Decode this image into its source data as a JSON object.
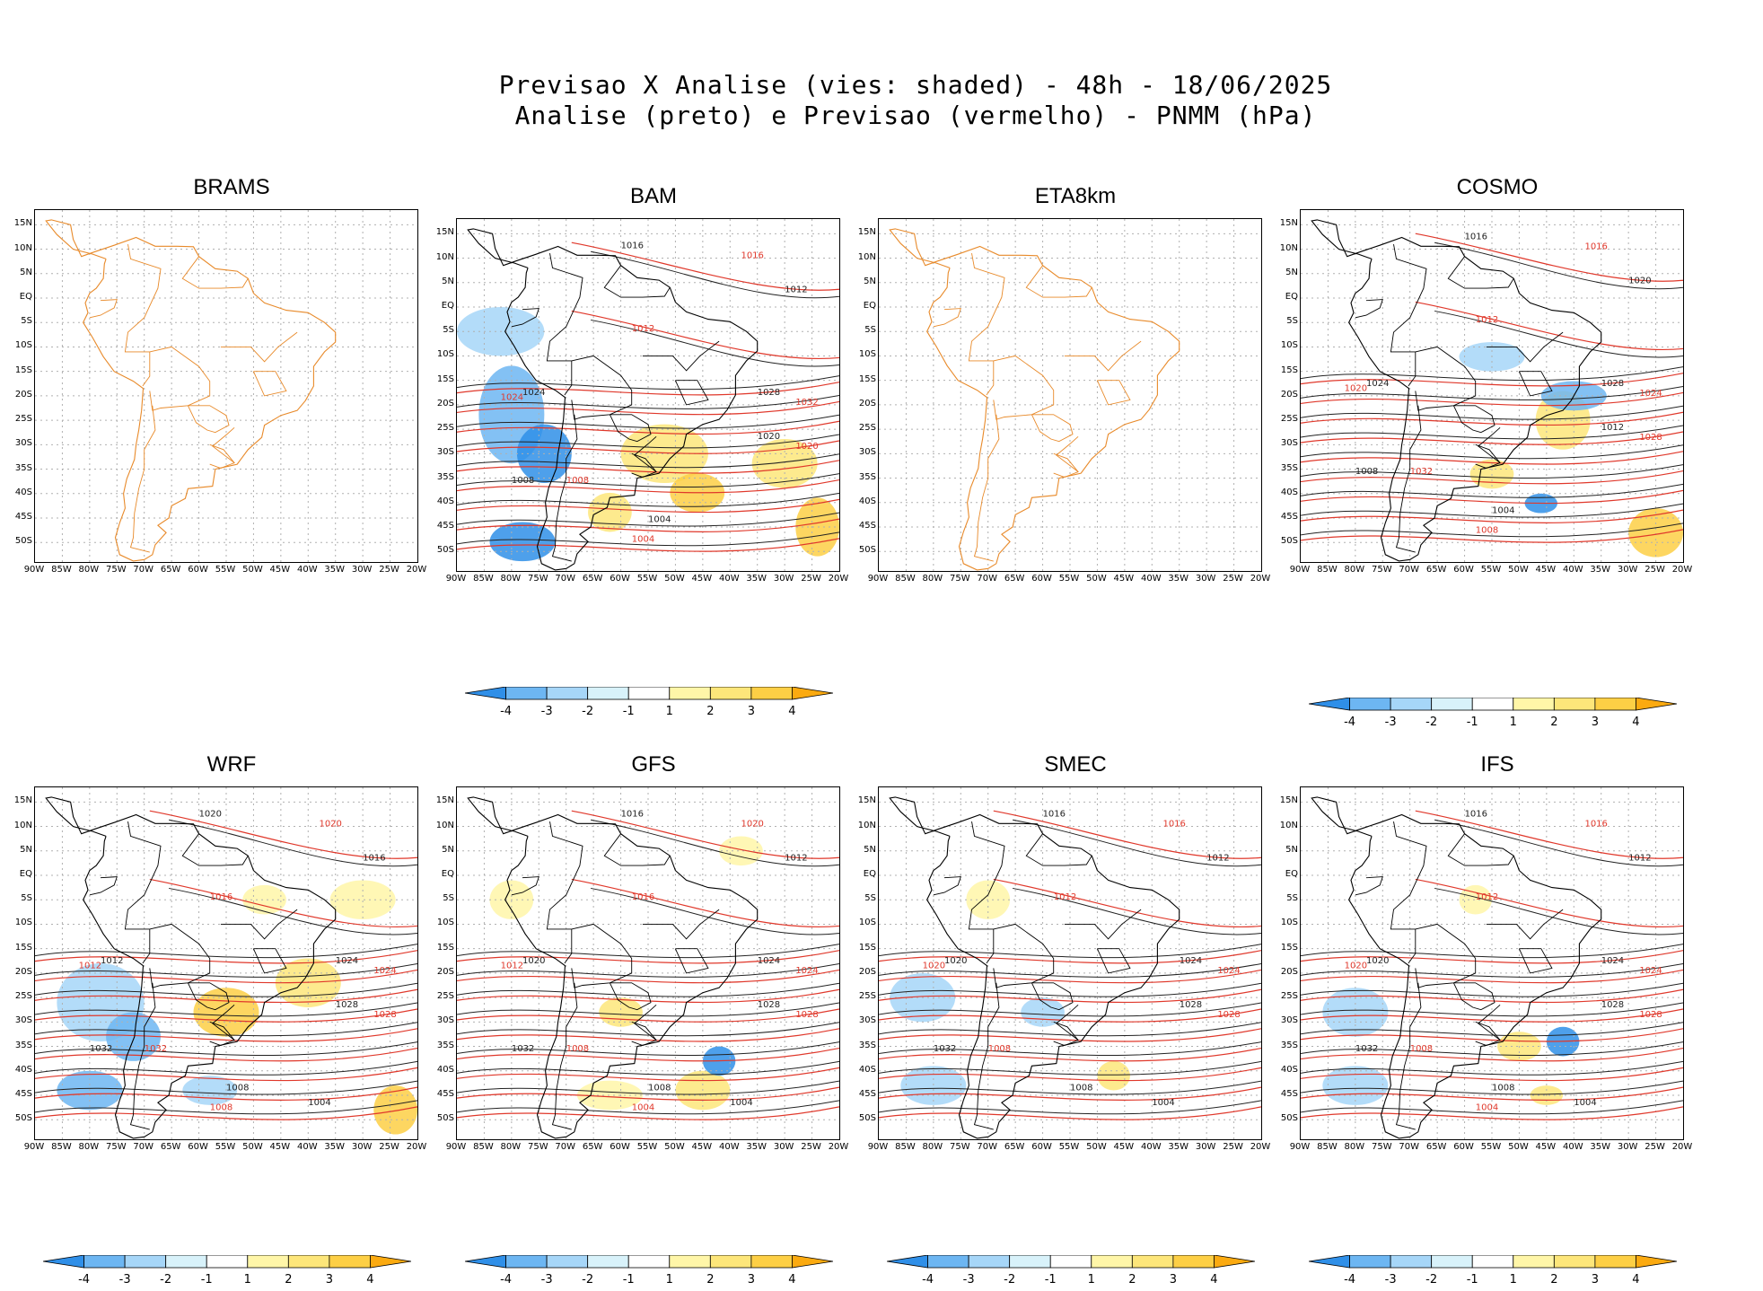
{
  "figure": {
    "title_line1": "Previsao X Analise (vies: shaded) - 48h - 18/06/2025",
    "title_line2": "Analise (preto) e Previsao (vermelho) - PNMM (hPa)"
  },
  "axes": {
    "lat_ticks": [
      "15N",
      "10N",
      "5N",
      "EQ",
      "5S",
      "10S",
      "15S",
      "20S",
      "25S",
      "30S",
      "35S",
      "40S",
      "45S",
      "50S"
    ],
    "lon_ticks": [
      "90W",
      "85W",
      "80W",
      "75W",
      "70W",
      "65W",
      "60W",
      "55W",
      "50W",
      "45W",
      "40W",
      "35W",
      "30W",
      "25W",
      "20W"
    ]
  },
  "colorbar": {
    "labels": [
      "-4",
      "-3",
      "-2",
      "-1",
      "1",
      "2",
      "3",
      "4"
    ],
    "colors": [
      "#2f8fe8",
      "#6db6f2",
      "#a6d6f8",
      "#d8f2fa",
      "#ffffff",
      "#fff6a8",
      "#fde67a",
      "#fdcf45",
      "#fbaa10"
    ]
  },
  "colors": {
    "coastline": "#e88a2a",
    "analysis_contour": "#222222",
    "forecast_contour": "#e0382b",
    "grid": "#b0b0b0"
  },
  "panels": [
    {
      "name": "BRAMS",
      "has_data": false,
      "has_colorbar": false,
      "labels_black": [],
      "labels_red": []
    },
    {
      "name": "BAM",
      "has_data": true,
      "has_colorbar": true,
      "labels_black": [
        "1016",
        "1012",
        "1024",
        "1028",
        "1020",
        "1008",
        "1004"
      ],
      "labels_red": [
        "1016",
        "1012",
        "1024",
        "1032",
        "1020",
        "1008",
        "1004"
      ]
    },
    {
      "name": "ETA8km",
      "has_data": false,
      "has_colorbar": false,
      "labels_black": [],
      "labels_red": []
    },
    {
      "name": "COSMO",
      "has_data": true,
      "has_colorbar": true,
      "labels_black": [
        "1016",
        "1020",
        "1024",
        "1028",
        "1012",
        "1008",
        "1004"
      ],
      "labels_red": [
        "1016",
        "1012",
        "1020",
        "1024",
        "1028",
        "1032",
        "1008"
      ]
    },
    {
      "name": "WRF",
      "has_data": true,
      "has_colorbar": true,
      "labels_black": [
        "1020",
        "1016",
        "1012",
        "1024",
        "1028",
        "1032",
        "1008",
        "1004"
      ],
      "labels_red": [
        "1020",
        "1016",
        "1012",
        "1024",
        "1028",
        "1032",
        "1008"
      ]
    },
    {
      "name": "GFS",
      "has_data": true,
      "has_colorbar": true,
      "labels_black": [
        "1016",
        "1012",
        "1020",
        "1024",
        "1028",
        "1032",
        "1008",
        "1004"
      ],
      "labels_red": [
        "1020",
        "1016",
        "1012",
        "1024",
        "1028",
        "1008",
        "1004"
      ]
    },
    {
      "name": "SMEC",
      "has_data": true,
      "has_colorbar": true,
      "labels_black": [
        "1016",
        "1012",
        "1020",
        "1024",
        "1028",
        "1032",
        "1008",
        "1004"
      ],
      "labels_red": [
        "1016",
        "1012",
        "1020",
        "1024",
        "1028",
        "1008"
      ]
    },
    {
      "name": "IFS",
      "has_data": true,
      "has_colorbar": true,
      "labels_black": [
        "1016",
        "1012",
        "1020",
        "1024",
        "1028",
        "1032",
        "1008",
        "1004"
      ],
      "labels_red": [
        "1016",
        "1012",
        "1020",
        "1024",
        "1028",
        "1008",
        "1004"
      ]
    }
  ]
}
